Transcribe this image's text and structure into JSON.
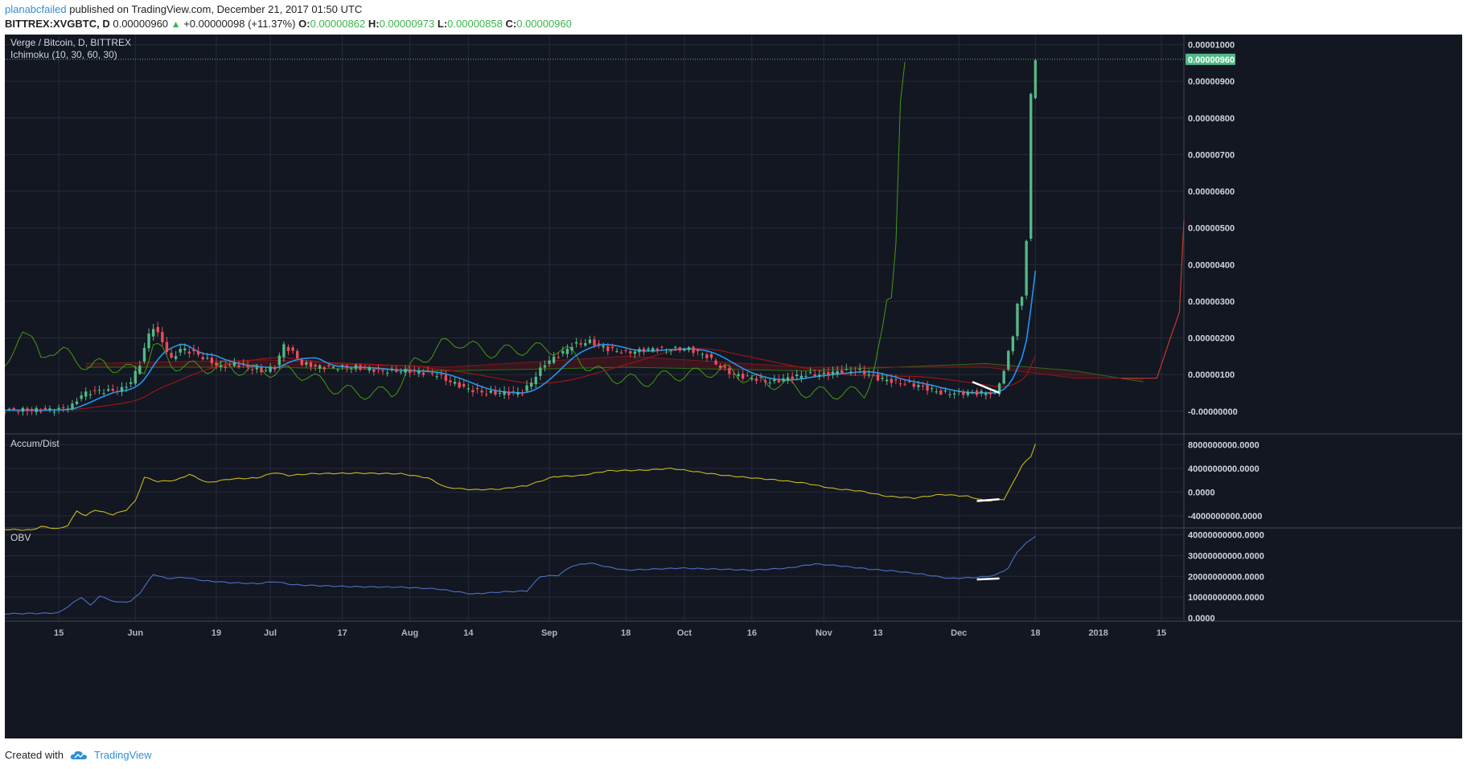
{
  "header": {
    "author": "planabcfailed",
    "published": "published on TradingView.com, December 21, 2017 01:50 UTC",
    "symbol": "BITTREX:XVGBTC, D",
    "last": "0.00000960",
    "change_arrow": "▲",
    "change": "+0.00000098 (+11.37%)",
    "o_label": "O:",
    "o": "0.00000862",
    "h_label": "H:",
    "h": "0.00000973",
    "l_label": "L:",
    "l": "0.00000858",
    "c_label": "C:",
    "c": "0.00000960"
  },
  "footer": {
    "created": "Created with",
    "brand": "TradingView",
    "logo_icon": "tradingview-cloud-icon"
  },
  "colors": {
    "background": "#131722",
    "grid": "#262b38",
    "up": "#53b987",
    "down": "#eb4d5c",
    "conversion": "#2196f3",
    "base": "#991515",
    "lagging": "#459915",
    "ad_line": "#c8b81d",
    "obv_line": "#4a72c4",
    "price_tag": "#53b987"
  },
  "chart_data": [
    {
      "type": "candlestick",
      "title": "Verge / Bitcoin, D, BITTREX",
      "indicator": "Ichimoku (10, 30, 60, 30)",
      "ylim": [
        -4e-07,
        1.01e-05
      ],
      "y_ticks": [
        {
          "v": 1e-05,
          "label": "0.00001000"
        },
        {
          "v": 9e-06,
          "label": "0.00000900"
        },
        {
          "v": 8e-06,
          "label": "0.00000800"
        },
        {
          "v": 7e-06,
          "label": "0.00000700"
        },
        {
          "v": 6e-06,
          "label": "0.00000600"
        },
        {
          "v": 5e-06,
          "label": "0.00000500"
        },
        {
          "v": 4e-06,
          "label": "0.00000400"
        },
        {
          "v": 3e-06,
          "label": "0.00000300"
        },
        {
          "v": 2e-06,
          "label": "0.00000200"
        },
        {
          "v": 1e-06,
          "label": "0.00000100"
        },
        {
          "v": 0.0,
          "label": "-0.00000000"
        }
      ],
      "last_price": 9.6e-06,
      "last_price_label": "0.00000960",
      "x_ticks": [
        {
          "label": "15",
          "day": 14
        },
        {
          "label": "Jun",
          "day": 31
        },
        {
          "label": "19",
          "day": 49
        },
        {
          "label": "Jul",
          "day": 61
        },
        {
          "label": "17",
          "day": 77
        },
        {
          "label": "Aug",
          "day": 92
        },
        {
          "label": "14",
          "day": 105
        },
        {
          "label": "Sep",
          "day": 123
        },
        {
          "label": "18",
          "day": 140
        },
        {
          "label": "Oct",
          "day": 153
        },
        {
          "label": "16",
          "day": 168
        },
        {
          "label": "Nov",
          "day": 184
        },
        {
          "label": "13",
          "day": 196
        },
        {
          "label": "Dec",
          "day": 214
        },
        {
          "label": "18",
          "day": 231
        },
        {
          "label": "2018",
          "day": 245
        },
        {
          "label": "15",
          "day": 259
        }
      ],
      "day_range": [
        2,
        264
      ],
      "close_keypoints": [
        [
          2,
          3e-08
        ],
        [
          10,
          3e-08
        ],
        [
          14,
          5e-08
        ],
        [
          17,
          1.5e-07
        ],
        [
          19,
          4.5e-07
        ],
        [
          22,
          5.5e-07
        ],
        [
          25,
          5.5e-07
        ],
        [
          28,
          6e-07
        ],
        [
          30,
          8e-07
        ],
        [
          32,
          1.3e-06
        ],
        [
          34,
          2.1e-06
        ],
        [
          35,
          2.3e-06
        ],
        [
          37,
          1.9e-06
        ],
        [
          39,
          1.4e-06
        ],
        [
          41,
          1.7e-06
        ],
        [
          44,
          1.6e-06
        ],
        [
          47,
          1.4e-06
        ],
        [
          50,
          1.2e-06
        ],
        [
          53,
          1.3e-06
        ],
        [
          56,
          1.2e-06
        ],
        [
          59,
          1.1e-06
        ],
        [
          62,
          1.2e-06
        ],
        [
          64,
          1.8e-06
        ],
        [
          66,
          1.6e-06
        ],
        [
          68,
          1.3e-06
        ],
        [
          72,
          1.2e-06
        ],
        [
          76,
          1.2e-06
        ],
        [
          80,
          1.2e-06
        ],
        [
          86,
          1.1e-06
        ],
        [
          92,
          1.1e-06
        ],
        [
          98,
          1e-06
        ],
        [
          101,
          8e-07
        ],
        [
          105,
          6e-07
        ],
        [
          109,
          5e-07
        ],
        [
          114,
          5e-07
        ],
        [
          117,
          5e-07
        ],
        [
          119,
          8e-07
        ],
        [
          122,
          1.3e-06
        ],
        [
          126,
          1.6e-06
        ],
        [
          128,
          1.8e-06
        ],
        [
          132,
          1.9e-06
        ],
        [
          136,
          1.7e-06
        ],
        [
          140,
          1.6e-06
        ],
        [
          146,
          1.7e-06
        ],
        [
          150,
          1.7e-06
        ],
        [
          154,
          1.7e-06
        ],
        [
          158,
          1.5e-06
        ],
        [
          161,
          1.2e-06
        ],
        [
          164,
          1e-06
        ],
        [
          168,
          9e-07
        ],
        [
          172,
          8e-07
        ],
        [
          176,
          9e-07
        ],
        [
          180,
          1e-06
        ],
        [
          184,
          1e-06
        ],
        [
          188,
          1.1e-06
        ],
        [
          192,
          1.1e-06
        ],
        [
          196,
          9e-07
        ],
        [
          200,
          8e-07
        ],
        [
          205,
          7e-07
        ],
        [
          210,
          5e-07
        ],
        [
          215,
          5e-07
        ],
        [
          219,
          5e-07
        ],
        [
          222,
          5e-07
        ],
        [
          224,
          1.1e-06
        ],
        [
          226,
          2.1e-06
        ],
        [
          227,
          2.9e-06
        ],
        [
          228,
          3.1e-06
        ],
        [
          229,
          4.7e-06
        ],
        [
          230,
          8.6e-06
        ],
        [
          231,
          9.6e-06
        ]
      ],
      "cloud": {
        "span_a": [
          [
            20,
            1.2e-06
          ],
          [
            60,
            1.2e-06
          ],
          [
            100,
            1.1e-06
          ],
          [
            140,
            1.2e-06
          ],
          [
            180,
            1.1e-06
          ],
          [
            220,
            1.3e-06
          ],
          [
            240,
            1.1e-06
          ],
          [
            255,
            8e-07
          ]
        ],
        "span_b": [
          [
            20,
            1.3e-06
          ],
          [
            60,
            1.4e-06
          ],
          [
            100,
            1.2e-06
          ],
          [
            140,
            1.5e-06
          ],
          [
            180,
            1.2e-06
          ],
          [
            220,
            1.2e-06
          ],
          [
            240,
            9e-07
          ],
          [
            255,
            9e-07
          ]
        ]
      },
      "lagging_span_end": {
        "day": 202,
        "value": 9.6e-06
      },
      "base_line_projection": [
        [
          250,
          9e-07
        ],
        [
          258,
          9e-07
        ],
        [
          261,
          2e-06
        ],
        [
          263,
          2.7e-06
        ],
        [
          264,
          5.2e-06
        ]
      ],
      "annotation": {
        "type": "trendline",
        "from": [
          217,
          8e-07
        ],
        "to": [
          223,
          5e-07
        ]
      }
    },
    {
      "type": "line",
      "title": "Accum/Dist",
      "ylim": [
        -5500000000,
        9000000000
      ],
      "y_ticks": [
        {
          "v": 8000000000,
          "label": "8000000000.0000"
        },
        {
          "v": 4000000000,
          "label": "4000000000.0000"
        },
        {
          "v": 0,
          "label": "0.0000"
        },
        {
          "v": -4000000000,
          "label": "-4000000000.0000"
        }
      ],
      "points": [
        [
          2,
          -6300000000
        ],
        [
          8,
          -6400000000
        ],
        [
          10,
          -5800000000
        ],
        [
          14,
          -6200000000
        ],
        [
          16,
          -5600000000
        ],
        [
          18,
          -3200000000
        ],
        [
          20,
          -4000000000
        ],
        [
          22,
          -3000000000
        ],
        [
          26,
          -3800000000
        ],
        [
          29,
          -3000000000
        ],
        [
          31,
          -1500000000
        ],
        [
          33,
          2500000000
        ],
        [
          36,
          1800000000
        ],
        [
          40,
          2000000000
        ],
        [
          43,
          3000000000
        ],
        [
          47,
          1600000000
        ],
        [
          52,
          2200000000
        ],
        [
          58,
          2400000000
        ],
        [
          62,
          3300000000
        ],
        [
          65,
          2800000000
        ],
        [
          70,
          3100000000
        ],
        [
          80,
          3200000000
        ],
        [
          90,
          3100000000
        ],
        [
          96,
          2400000000
        ],
        [
          100,
          800000000
        ],
        [
          106,
          400000000
        ],
        [
          112,
          500000000
        ],
        [
          118,
          1100000000
        ],
        [
          124,
          2600000000
        ],
        [
          130,
          2800000000
        ],
        [
          136,
          3600000000
        ],
        [
          144,
          3700000000
        ],
        [
          150,
          4000000000
        ],
        [
          156,
          3400000000
        ],
        [
          162,
          2800000000
        ],
        [
          168,
          2400000000
        ],
        [
          174,
          2000000000
        ],
        [
          180,
          1500000000
        ],
        [
          186,
          600000000
        ],
        [
          192,
          200000000
        ],
        [
          198,
          -700000000
        ],
        [
          204,
          -1000000000
        ],
        [
          210,
          -400000000
        ],
        [
          216,
          -700000000
        ],
        [
          220,
          -1500000000
        ],
        [
          224,
          -1200000000
        ],
        [
          226,
          1500000000
        ],
        [
          228,
          4500000000
        ],
        [
          230,
          6000000000
        ],
        [
          231,
          8200000000
        ]
      ],
      "annotation": {
        "type": "trendline",
        "from": [
          218,
          -1500000000
        ],
        "to": [
          223,
          -1200000000
        ]
      }
    },
    {
      "type": "line",
      "title": "OBV",
      "ylim": [
        0,
        41000000000
      ],
      "y_ticks": [
        {
          "v": 40000000000,
          "label": "40000000000.0000"
        },
        {
          "v": 30000000000,
          "label": "30000000000.0000"
        },
        {
          "v": 20000000000,
          "label": "20000000000.0000"
        },
        {
          "v": 10000000000,
          "label": "10000000000.0000"
        },
        {
          "v": 0,
          "label": "0.0000"
        }
      ],
      "points": [
        [
          2,
          2000000000
        ],
        [
          10,
          2200000000
        ],
        [
          14,
          2500000000
        ],
        [
          17,
          7000000000
        ],
        [
          19,
          10000000000
        ],
        [
          21,
          6000000000
        ],
        [
          23,
          10500000000
        ],
        [
          27,
          7500000000
        ],
        [
          30,
          8000000000
        ],
        [
          32,
          12000000000
        ],
        [
          35,
          21000000000
        ],
        [
          38,
          19000000000
        ],
        [
          42,
          19500000000
        ],
        [
          46,
          18000000000
        ],
        [
          52,
          17000000000
        ],
        [
          58,
          16500000000
        ],
        [
          62,
          17500000000
        ],
        [
          66,
          16000000000
        ],
        [
          72,
          15500000000
        ],
        [
          80,
          15000000000
        ],
        [
          90,
          14800000000
        ],
        [
          98,
          14000000000
        ],
        [
          106,
          11500000000
        ],
        [
          112,
          12500000000
        ],
        [
          118,
          13000000000
        ],
        [
          121,
          20000000000
        ],
        [
          125,
          20500000000
        ],
        [
          128,
          25000000000
        ],
        [
          132,
          26500000000
        ],
        [
          136,
          24500000000
        ],
        [
          140,
          23000000000
        ],
        [
          146,
          23500000000
        ],
        [
          152,
          24000000000
        ],
        [
          160,
          23500000000
        ],
        [
          168,
          23000000000
        ],
        [
          176,
          24000000000
        ],
        [
          182,
          26000000000
        ],
        [
          188,
          25000000000
        ],
        [
          194,
          23500000000
        ],
        [
          200,
          22500000000
        ],
        [
          206,
          21000000000
        ],
        [
          212,
          19000000000
        ],
        [
          218,
          19500000000
        ],
        [
          222,
          20500000000
        ],
        [
          225,
          24000000000
        ],
        [
          227,
          32000000000
        ],
        [
          229,
          36000000000
        ],
        [
          231,
          39500000000
        ]
      ],
      "annotation": {
        "type": "trendline",
        "from": [
          218,
          18500000000
        ],
        "to": [
          223,
          19000000000
        ]
      }
    }
  ]
}
